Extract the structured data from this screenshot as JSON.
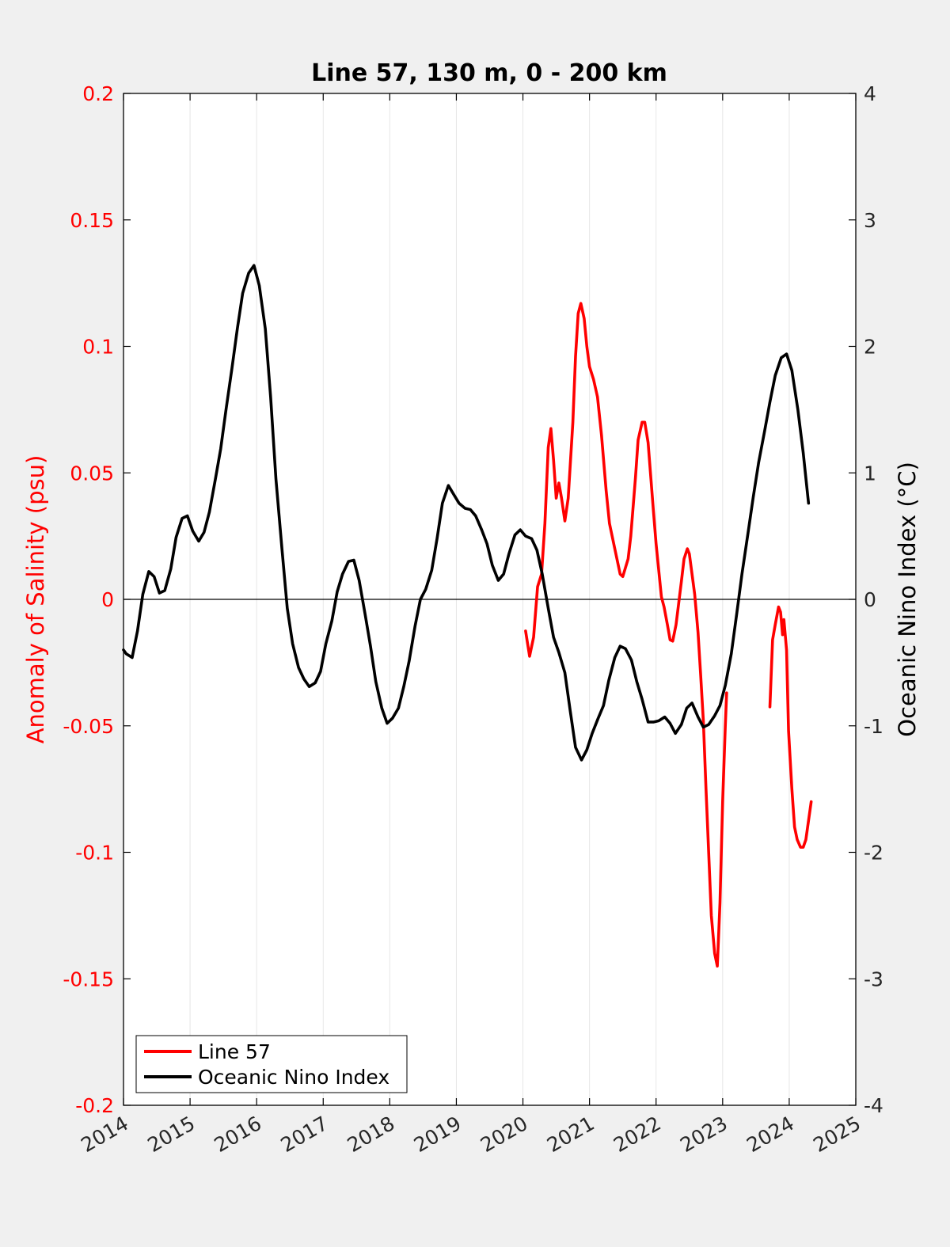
{
  "chart_data": {
    "type": "line",
    "title": "Line 57, 130 m, 0 - 200 km",
    "xlabel": "",
    "ylabel_left": "Anomaly of Salinity (psu)",
    "ylabel_right": "Oceanic Nino Index (°C)",
    "xlim": [
      2014,
      2025
    ],
    "ylim_left": [
      -0.2,
      0.2
    ],
    "ylim_right": [
      -4,
      4
    ],
    "x_ticks": [
      "2014",
      "2015",
      "2016",
      "2017",
      "2018",
      "2019",
      "2020",
      "2021",
      "2022",
      "2023",
      "2024",
      "2025"
    ],
    "y_ticks_left": [
      "-0.2",
      "-0.15",
      "-0.1",
      "-0.05",
      "0",
      "0.05",
      "0.1",
      "0.15",
      "0.2"
    ],
    "y_ticks_right": [
      "-4",
      "-3",
      "-2",
      "-1",
      "0",
      "1",
      "2",
      "3",
      "4"
    ],
    "grid": "vertical",
    "zero_line": true,
    "legend_position": "bottom-left",
    "colors": {
      "left_axis": "#ff0000",
      "line57": "#ff0000",
      "oni": "#000000"
    },
    "series": [
      {
        "name": "Line 57",
        "axis": "left",
        "segments": [
          [
            [
              2020.04,
              -0.0125
            ],
            [
              2020.1,
              -0.0225
            ],
            [
              2020.16,
              -0.015
            ],
            [
              2020.22,
              0.005
            ],
            [
              2020.28,
              0.01
            ],
            [
              2020.33,
              0.03
            ],
            [
              2020.38,
              0.06
            ],
            [
              2020.42,
              0.0675
            ],
            [
              2020.46,
              0.055
            ],
            [
              2020.5,
              0.04
            ],
            [
              2020.54,
              0.046
            ],
            [
              2020.58,
              0.04
            ],
            [
              2020.63,
              0.031
            ],
            [
              2020.68,
              0.04
            ],
            [
              2020.75,
              0.07
            ],
            [
              2020.79,
              0.096
            ],
            [
              2020.83,
              0.113
            ],
            [
              2020.87,
              0.117
            ],
            [
              2020.92,
              0.111
            ],
            [
              2020.96,
              0.1
            ],
            [
              2021.0,
              0.092
            ],
            [
              2021.06,
              0.087
            ],
            [
              2021.12,
              0.08
            ],
            [
              2021.18,
              0.065
            ],
            [
              2021.25,
              0.043
            ],
            [
              2021.3,
              0.03
            ],
            [
              2021.38,
              0.02
            ],
            [
              2021.46,
              0.01
            ],
            [
              2021.5,
              0.009
            ],
            [
              2021.58,
              0.016
            ],
            [
              2021.62,
              0.025
            ],
            [
              2021.69,
              0.048
            ],
            [
              2021.73,
              0.063
            ],
            [
              2021.79,
              0.07
            ],
            [
              2021.83,
              0.07
            ],
            [
              2021.88,
              0.062
            ],
            [
              2021.96,
              0.035
            ],
            [
              2022.0,
              0.022
            ],
            [
              2022.08,
              0.001
            ],
            [
              2022.12,
              -0.003
            ],
            [
              2022.17,
              -0.01
            ],
            [
              2022.21,
              -0.016
            ],
            [
              2022.25,
              -0.0165
            ],
            [
              2022.3,
              -0.01
            ],
            [
              2022.38,
              0.007
            ],
            [
              2022.42,
              0.016
            ],
            [
              2022.47,
              0.02
            ],
            [
              2022.5,
              0.018
            ],
            [
              2022.58,
              0.002
            ],
            [
              2022.63,
              -0.013
            ],
            [
              2022.67,
              -0.03
            ],
            [
              2022.71,
              -0.048
            ],
            [
              2022.75,
              -0.075
            ],
            [
              2022.79,
              -0.1
            ],
            [
              2022.83,
              -0.125
            ],
            [
              2022.88,
              -0.14
            ],
            [
              2022.92,
              -0.145
            ],
            [
              2022.96,
              -0.12
            ],
            [
              2023.0,
              -0.08
            ],
            [
              2023.04,
              -0.05
            ],
            [
              2023.06,
              -0.037
            ]
          ],
          [
            [
              2023.71,
              -0.0425
            ],
            [
              2023.75,
              -0.016
            ],
            [
              2023.79,
              -0.01
            ],
            [
              2023.84,
              -0.003
            ],
            [
              2023.87,
              -0.005
            ],
            [
              2023.9,
              -0.014
            ],
            [
              2023.92,
              -0.008
            ],
            [
              2023.96,
              -0.02
            ],
            [
              2023.99,
              -0.052
            ],
            [
              2024.04,
              -0.075
            ],
            [
              2024.08,
              -0.09
            ],
            [
              2024.12,
              -0.095
            ],
            [
              2024.17,
              -0.098
            ],
            [
              2024.21,
              -0.098
            ],
            [
              2024.25,
              -0.095
            ],
            [
              2024.33,
              -0.08
            ]
          ]
        ]
      },
      {
        "name": "Oceanic Nino Index",
        "axis": "right",
        "segments": [
          [
            [
              2014.0,
              -0.4
            ],
            [
              2014.04,
              -0.43
            ],
            [
              2014.13,
              -0.46
            ],
            [
              2014.21,
              -0.25
            ],
            [
              2014.29,
              0.04
            ],
            [
              2014.38,
              0.22
            ],
            [
              2014.46,
              0.18
            ],
            [
              2014.54,
              0.05
            ],
            [
              2014.62,
              0.07
            ],
            [
              2014.71,
              0.24
            ],
            [
              2014.79,
              0.49
            ],
            [
              2014.88,
              0.64
            ],
            [
              2014.96,
              0.66
            ],
            [
              2015.04,
              0.54
            ],
            [
              2015.13,
              0.46
            ],
            [
              2015.21,
              0.53
            ],
            [
              2015.29,
              0.69
            ],
            [
              2015.38,
              0.95
            ],
            [
              2015.46,
              1.19
            ],
            [
              2015.54,
              1.5
            ],
            [
              2015.63,
              1.83
            ],
            [
              2015.71,
              2.14
            ],
            [
              2015.79,
              2.42
            ],
            [
              2015.88,
              2.58
            ],
            [
              2015.96,
              2.64
            ],
            [
              2016.04,
              2.48
            ],
            [
              2016.13,
              2.14
            ],
            [
              2016.21,
              1.6
            ],
            [
              2016.29,
              0.95
            ],
            [
              2016.38,
              0.4
            ],
            [
              2016.46,
              -0.07
            ],
            [
              2016.54,
              -0.35
            ],
            [
              2016.63,
              -0.54
            ],
            [
              2016.71,
              -0.63
            ],
            [
              2016.79,
              -0.69
            ],
            [
              2016.88,
              -0.66
            ],
            [
              2016.96,
              -0.57
            ],
            [
              2017.04,
              -0.35
            ],
            [
              2017.13,
              -0.17
            ],
            [
              2017.21,
              0.06
            ],
            [
              2017.29,
              0.2
            ],
            [
              2017.38,
              0.3
            ],
            [
              2017.46,
              0.31
            ],
            [
              2017.54,
              0.15
            ],
            [
              2017.63,
              -0.12
            ],
            [
              2017.71,
              -0.37
            ],
            [
              2017.79,
              -0.65
            ],
            [
              2017.88,
              -0.86
            ],
            [
              2017.96,
              -0.98
            ],
            [
              2018.04,
              -0.94
            ],
            [
              2018.13,
              -0.86
            ],
            [
              2018.21,
              -0.69
            ],
            [
              2018.29,
              -0.49
            ],
            [
              2018.38,
              -0.21
            ],
            [
              2018.46,
              0.0
            ],
            [
              2018.54,
              0.08
            ],
            [
              2018.63,
              0.23
            ],
            [
              2018.71,
              0.48
            ],
            [
              2018.79,
              0.76
            ],
            [
              2018.88,
              0.9
            ],
            [
              2018.96,
              0.83
            ],
            [
              2019.04,
              0.76
            ],
            [
              2019.13,
              0.72
            ],
            [
              2019.21,
              0.71
            ],
            [
              2019.29,
              0.66
            ],
            [
              2019.38,
              0.55
            ],
            [
              2019.46,
              0.44
            ],
            [
              2019.54,
              0.27
            ],
            [
              2019.63,
              0.15
            ],
            [
              2019.71,
              0.2
            ],
            [
              2019.79,
              0.36
            ],
            [
              2019.88,
              0.51
            ],
            [
              2019.96,
              0.55
            ],
            [
              2020.04,
              0.5
            ],
            [
              2020.13,
              0.48
            ],
            [
              2020.21,
              0.39
            ],
            [
              2020.29,
              0.2
            ],
            [
              2020.38,
              -0.07
            ],
            [
              2020.46,
              -0.3
            ],
            [
              2020.54,
              -0.42
            ],
            [
              2020.63,
              -0.58
            ],
            [
              2020.71,
              -0.88
            ],
            [
              2020.79,
              -1.17
            ],
            [
              2020.88,
              -1.27
            ],
            [
              2020.96,
              -1.19
            ],
            [
              2021.04,
              -1.06
            ],
            [
              2021.13,
              -0.94
            ],
            [
              2021.21,
              -0.84
            ],
            [
              2021.29,
              -0.64
            ],
            [
              2021.38,
              -0.46
            ],
            [
              2021.46,
              -0.37
            ],
            [
              2021.54,
              -0.39
            ],
            [
              2021.63,
              -0.48
            ],
            [
              2021.71,
              -0.65
            ],
            [
              2021.79,
              -0.79
            ],
            [
              2021.88,
              -0.97
            ],
            [
              2021.96,
              -0.97
            ],
            [
              2022.04,
              -0.96
            ],
            [
              2022.13,
              -0.93
            ],
            [
              2022.21,
              -0.98
            ],
            [
              2022.29,
              -1.06
            ],
            [
              2022.38,
              -0.99
            ],
            [
              2022.46,
              -0.86
            ],
            [
              2022.54,
              -0.82
            ],
            [
              2022.63,
              -0.93
            ],
            [
              2022.71,
              -1.01
            ],
            [
              2022.79,
              -0.99
            ],
            [
              2022.88,
              -0.92
            ],
            [
              2022.96,
              -0.84
            ],
            [
              2023.04,
              -0.68
            ],
            [
              2023.13,
              -0.43
            ],
            [
              2023.21,
              -0.12
            ],
            [
              2023.29,
              0.2
            ],
            [
              2023.38,
              0.52
            ],
            [
              2023.46,
              0.81
            ],
            [
              2023.54,
              1.08
            ],
            [
              2023.63,
              1.33
            ],
            [
              2023.71,
              1.56
            ],
            [
              2023.79,
              1.77
            ],
            [
              2023.88,
              1.91
            ],
            [
              2023.96,
              1.94
            ],
            [
              2024.04,
              1.81
            ],
            [
              2024.13,
              1.5
            ],
            [
              2024.21,
              1.16
            ],
            [
              2024.29,
              0.76
            ]
          ]
        ]
      }
    ]
  }
}
